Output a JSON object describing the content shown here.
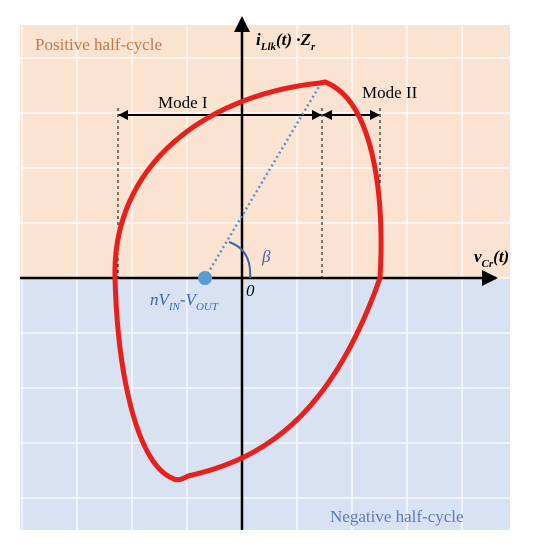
{
  "regions": {
    "positive": "Positive half-cycle",
    "negative": "Negative half-cycle"
  },
  "modes": [
    "Mode I",
    "Mode II"
  ],
  "axes": {
    "y_label": [
      "i",
      "Llk",
      "(t) ·Z",
      "r"
    ],
    "x_label": [
      "v",
      "Cr",
      "(t)"
    ],
    "origin": "0"
  },
  "angle": "β",
  "center_label": [
    "nV",
    "IN",
    "-V",
    "OUT"
  ]
}
